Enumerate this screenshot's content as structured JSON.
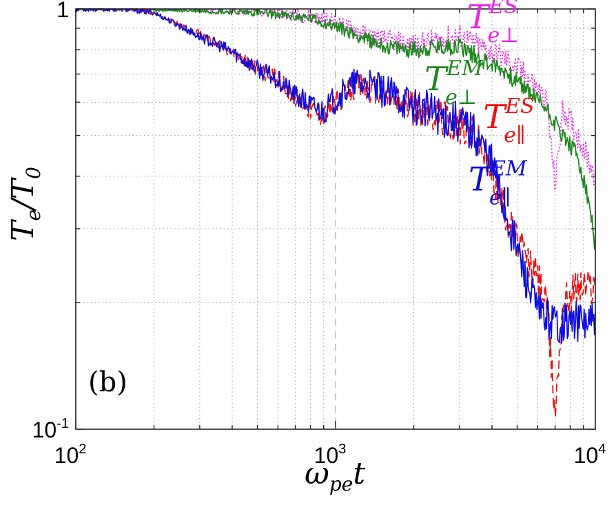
{
  "chart_data": {
    "type": "line",
    "panel_label": "(b)",
    "title": "",
    "xlabel": {
      "base": "ω",
      "sub": "pe",
      "tail": "t"
    },
    "ylabel": {
      "a": "T",
      "a_sub": "e",
      "slash": "/",
      "b": "T",
      "b_sub": "0"
    },
    "xscale": "log",
    "yscale": "log",
    "xlim": [
      100,
      10000
    ],
    "ylim": [
      0.1,
      1
    ],
    "grid": true,
    "x_ticks": [
      {
        "value": 100,
        "base": "10",
        "exp": "2"
      },
      {
        "value": 1000,
        "base": "10",
        "exp": "3"
      },
      {
        "value": 10000,
        "base": "10",
        "exp": "4"
      }
    ],
    "y_ticks": [
      {
        "value": 0.1,
        "base": "10",
        "exp": "-1"
      },
      {
        "value": 1,
        "base": "1",
        "exp": ""
      }
    ],
    "vertical_marker": {
      "x": 1000,
      "style": "dashed",
      "color": "#cccccc"
    },
    "series": [
      {
        "name": "T_e⊥^ES",
        "base": "T",
        "sub": "e⊥",
        "sup": "ES",
        "color": "#ee22ee",
        "dash": "dotted",
        "noise": 0.03,
        "seed": 11,
        "label_anchor": {
          "x": 3200,
          "y": 0.9
        },
        "x": [
          100,
          300,
          500,
          800,
          1000,
          1300,
          1600,
          2000,
          2500,
          3000,
          3500,
          4500,
          5500,
          6500,
          7000,
          7500,
          8000,
          9000,
          10000
        ],
        "y": [
          1.0,
          1.0,
          0.99,
          0.96,
          0.93,
          0.87,
          0.84,
          0.82,
          0.84,
          0.86,
          0.82,
          0.76,
          0.69,
          0.6,
          0.38,
          0.58,
          0.54,
          0.47,
          0.4
        ]
      },
      {
        "name": "T_e⊥^EM",
        "base": "T",
        "sub": "e⊥",
        "sup": "EM",
        "color": "#1e8a1e",
        "dash": "solid",
        "noise": 0.022,
        "seed": 23,
        "label_anchor": {
          "x": 2200,
          "y": 0.64
        },
        "x": [
          100,
          300,
          500,
          800,
          1000,
          1300,
          1600,
          2000,
          2500,
          3000,
          3500,
          4500,
          5500,
          6500,
          7500,
          8500,
          9500,
          10000
        ],
        "y": [
          1.0,
          0.99,
          0.98,
          0.95,
          0.91,
          0.85,
          0.81,
          0.8,
          0.81,
          0.82,
          0.77,
          0.71,
          0.64,
          0.58,
          0.5,
          0.45,
          0.34,
          0.27
        ]
      },
      {
        "name": "T_e∥^ES",
        "base": "T",
        "sub": "e∥",
        "sup": "ES",
        "color": "#ee1111",
        "dash": "dashed",
        "noise": 0.045,
        "seed": 37,
        "label_anchor": {
          "x": 3700,
          "y": 0.52
        },
        "x": [
          100,
          150,
          200,
          300,
          400,
          500,
          600,
          700,
          800,
          900,
          1000,
          1200,
          1500,
          2000,
          2500,
          3000,
          3500,
          4000,
          4500,
          5000,
          6000,
          6500,
          7000,
          7500,
          8500,
          10000
        ],
        "y": [
          1.0,
          1.0,
          0.98,
          0.87,
          0.79,
          0.72,
          0.68,
          0.62,
          0.58,
          0.56,
          0.6,
          0.66,
          0.63,
          0.58,
          0.56,
          0.53,
          0.5,
          0.41,
          0.33,
          0.28,
          0.23,
          0.2,
          0.11,
          0.2,
          0.22,
          0.22
        ]
      },
      {
        "name": "T_e∥^EM",
        "base": "T",
        "sub": "e∥",
        "sup": "EM",
        "color": "#1010dd",
        "dash": "solid",
        "noise": 0.05,
        "seed": 53,
        "label_anchor": {
          "x": 3250,
          "y": 0.37
        },
        "x": [
          100,
          150,
          200,
          300,
          400,
          500,
          600,
          700,
          800,
          900,
          1000,
          1200,
          1500,
          2000,
          2500,
          3000,
          3500,
          4000,
          4500,
          5000,
          5500,
          6000,
          7000,
          8000,
          9000,
          10000
        ],
        "y": [
          1.0,
          1.0,
          0.98,
          0.86,
          0.79,
          0.72,
          0.68,
          0.62,
          0.59,
          0.57,
          0.61,
          0.67,
          0.64,
          0.59,
          0.56,
          0.54,
          0.5,
          0.43,
          0.33,
          0.27,
          0.22,
          0.19,
          0.18,
          0.18,
          0.18,
          0.18
        ]
      }
    ]
  }
}
